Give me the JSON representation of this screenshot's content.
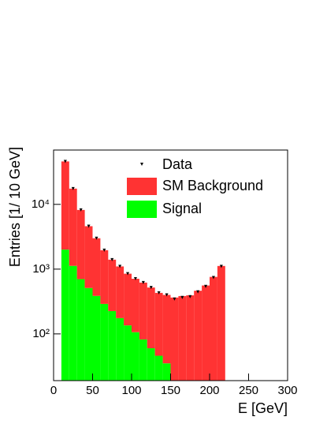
{
  "chart_data": {
    "type": "histogram",
    "log_y": true,
    "xlabel": "E [GeV]",
    "ylabel": "Entries [1/ 10 GeV]",
    "bins": [
      10,
      20,
      30,
      40,
      50,
      60,
      70,
      80,
      90,
      100,
      110,
      120,
      130,
      140,
      150,
      160,
      170,
      180,
      190,
      200,
      210,
      220
    ],
    "series": [
      {
        "name": "Signal",
        "color": "#00ff00",
        "values": [
          2000,
          1120,
          700,
          510,
          385,
          290,
          225,
          175,
          135,
          106,
          82,
          60,
          46,
          35,
          null,
          null,
          null,
          null,
          null,
          null,
          null
        ]
      },
      {
        "name": "SM Background",
        "color": "#ff3333",
        "values": [
          44000,
          16380,
          7500,
          4090,
          2615,
          1670,
          1175,
          925,
          715,
          604,
          538,
          460,
          384,
          365,
          345,
          365,
          375,
          445,
          540,
          740,
          1100
        ]
      },
      {
        "name": "Data",
        "color": "#000000",
        "values": [
          46000,
          17500,
          8200,
          4600,
          3000,
          1960,
          1400,
          1100,
          850,
          710,
          620,
          520,
          430,
          400,
          345,
          365,
          375,
          445,
          540,
          740,
          1100
        ]
      }
    ],
    "xlim": [
      0,
      300
    ],
    "xticks": [
      0,
      50,
      100,
      150,
      200,
      250,
      300
    ],
    "ylim": [
      19,
      69000
    ],
    "yticks": [
      {
        "value": 100,
        "label": "10²"
      },
      {
        "value": 1000,
        "label": "10³"
      },
      {
        "value": 10000,
        "label": "10⁴"
      }
    ]
  }
}
